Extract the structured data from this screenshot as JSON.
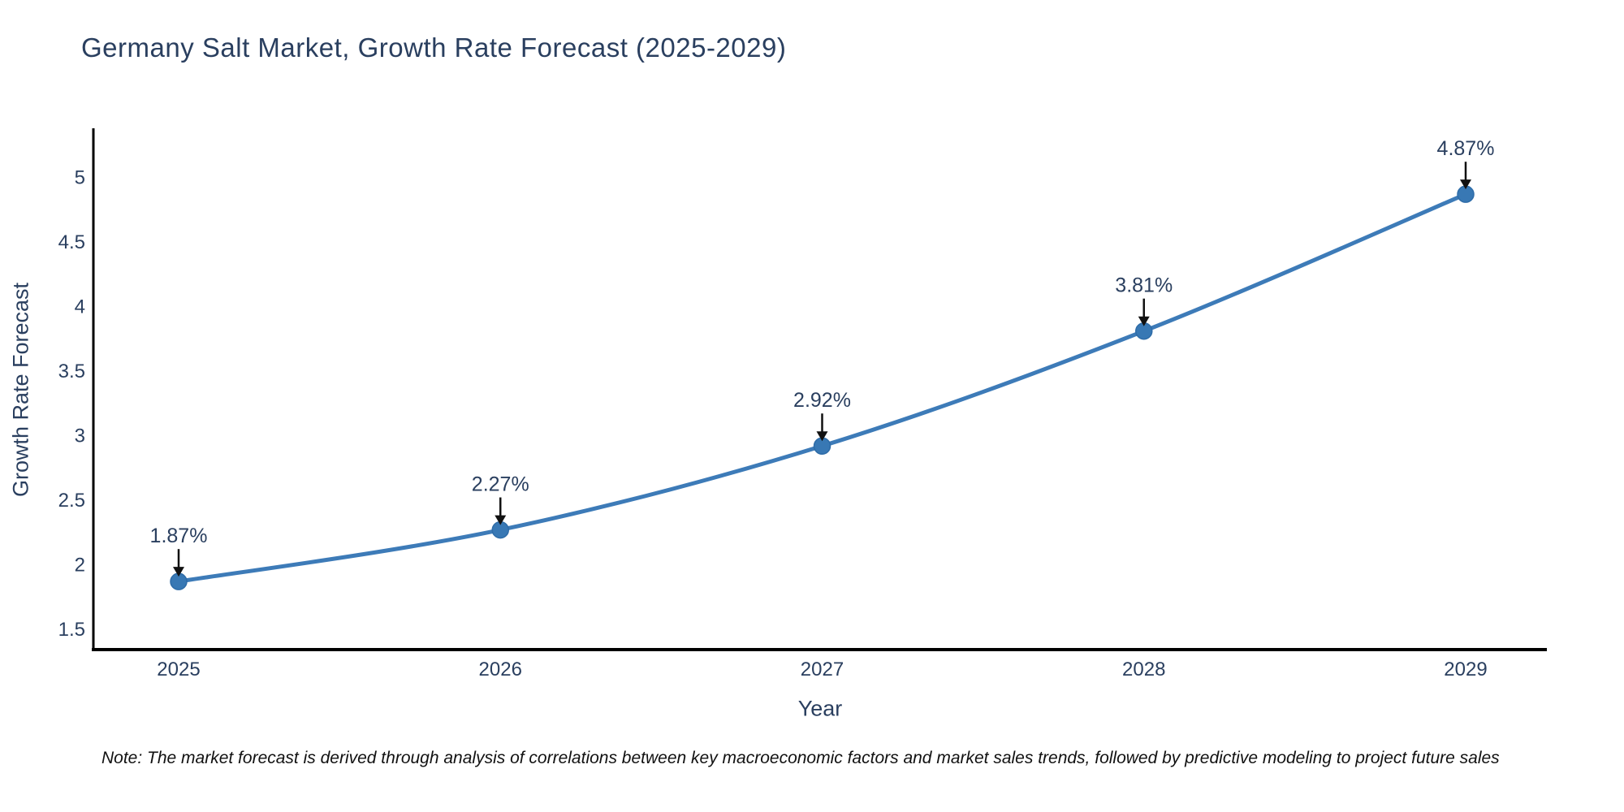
{
  "title": "Germany Salt Market, Growth Rate Forecast (2025-2029)",
  "note": "Note: The market forecast is derived through analysis of correlations between key macroeconomic factors and market sales trends, followed by predictive modeling to project future sales",
  "chart_data": {
    "type": "line",
    "title": "Germany Salt Market, Growth Rate Forecast (2025-2029)",
    "xlabel": "Year",
    "ylabel": "Growth Rate Forecast",
    "x": [
      "2025",
      "2026",
      "2027",
      "2028",
      "2029"
    ],
    "series": [
      {
        "name": "Growth Rate Forecast",
        "values": [
          1.87,
          2.27,
          2.92,
          3.81,
          4.87
        ]
      }
    ],
    "point_labels": [
      "1.87%",
      "2.27%",
      "2.92%",
      "3.81%",
      "4.87%"
    ],
    "y_ticks": [
      1.5,
      2,
      2.5,
      3,
      3.5,
      4,
      4.5,
      5
    ],
    "ylim": [
      1.34,
      5.38
    ],
    "grid": false,
    "legend_position": "none",
    "line_shape": "spline",
    "marker": "circle",
    "annotation_style": "value-label-with-down-arrow",
    "colors": {
      "line": "#3d7bb8",
      "marker_fill": "#3878b4",
      "marker_edge": "#2e6ca8",
      "axis_line": "#000000",
      "tick_label": "#2a3f5f",
      "title_text": "#2a3f5f",
      "annotation_text": "#2a3f5f",
      "arrow": "#111111",
      "background": "#ffffff"
    }
  }
}
